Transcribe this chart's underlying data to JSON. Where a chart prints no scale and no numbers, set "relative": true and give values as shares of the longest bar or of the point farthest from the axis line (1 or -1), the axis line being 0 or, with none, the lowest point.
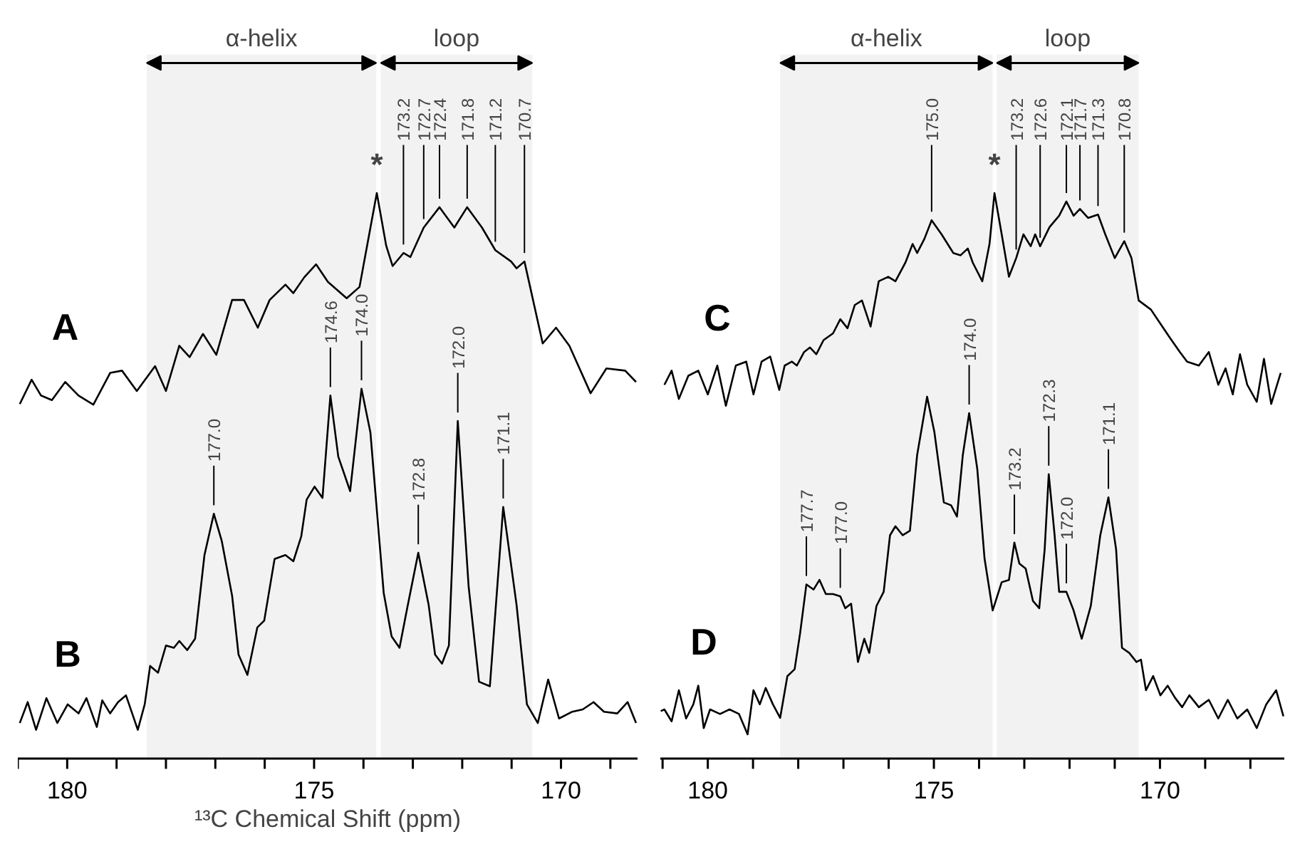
{
  "chart_data": [
    {
      "type": "line",
      "relative": true,
      "xlabel": "¹³C Chemical Shift (ppm)",
      "xlim": [
        181.0,
        168.45
      ],
      "xticks": [
        {
          "value": 181,
          "label": null
        },
        180,
        {
          "value": 179,
          "label": null
        },
        {
          "value": 178,
          "label": null
        },
        {
          "value": 177,
          "label": null
        },
        {
          "value": 176,
          "label": null
        },
        175,
        {
          "value": 174,
          "label": null
        },
        {
          "value": 173,
          "label": null
        },
        {
          "value": 172,
          "label": null
        },
        {
          "value": 171,
          "label": null
        },
        170,
        {
          "value": 169,
          "label": null
        }
      ],
      "line_style": "solid",
      "series": [
        {
          "name": "A",
          "color": "#000000",
          "x": [
            180.96,
            180.72,
            180.53,
            180.31,
            180.04,
            179.77,
            179.47,
            179.13,
            178.89,
            178.59,
            178.22,
            178.0,
            177.73,
            177.52,
            177.25,
            176.98,
            176.66,
            176.42,
            176.14,
            175.9,
            175.58,
            175.42,
            175.2,
            174.96,
            174.72,
            174.34,
            174.08,
            173.73,
            173.54,
            173.41,
            173.19,
            173.05,
            172.78,
            172.46,
            172.16,
            171.9,
            171.6,
            171.33,
            171.01,
            170.9,
            170.74,
            170.37,
            170.1,
            169.83,
            169.4,
            169.08,
            168.7,
            168.48
          ],
          "values": [
            0.627,
            0.67,
            0.642,
            0.634,
            0.666,
            0.642,
            0.626,
            0.682,
            0.686,
            0.65,
            0.694,
            0.65,
            0.73,
            0.71,
            0.751,
            0.714,
            0.811,
            0.811,
            0.762,
            0.811,
            0.838,
            0.823,
            0.851,
            0.874,
            0.843,
            0.814,
            0.834,
            1.0,
            0.907,
            0.871,
            0.894,
            0.887,
            0.939,
            0.975,
            0.939,
            0.975,
            0.939,
            0.899,
            0.879,
            0.867,
            0.879,
            0.734,
            0.762,
            0.73,
            0.646,
            0.69,
            0.686,
            0.666
          ]
        },
        {
          "name": "B",
          "color": "#000000",
          "x": [
            180.96,
            180.8,
            180.63,
            180.42,
            180.2,
            179.99,
            179.77,
            179.61,
            179.4,
            179.29,
            179.13,
            178.97,
            178.81,
            178.57,
            178.43,
            178.32,
            178.16,
            178.0,
            177.84,
            177.73,
            177.57,
            177.41,
            177.22,
            177.03,
            176.87,
            176.66,
            176.53,
            176.35,
            176.15,
            176.01,
            175.8,
            175.58,
            175.42,
            175.26,
            175.15,
            174.99,
            174.83,
            174.67,
            174.51,
            174.27,
            174.04,
            173.86,
            173.59,
            173.43,
            173.27,
            173.11,
            172.89,
            172.68,
            172.55,
            172.41,
            172.27,
            172.09,
            171.87,
            171.66,
            171.44,
            171.17,
            170.9,
            170.69,
            170.47,
            170.26,
            170.04,
            169.77,
            169.56,
            169.34,
            169.13,
            168.86,
            168.65,
            168.48
          ],
          "values": [
            0.063,
            0.1,
            0.051,
            0.107,
            0.063,
            0.096,
            0.08,
            0.107,
            0.056,
            0.103,
            0.08,
            0.1,
            0.112,
            0.051,
            0.096,
            0.164,
            0.152,
            0.2,
            0.196,
            0.208,
            0.192,
            0.212,
            0.36,
            0.433,
            0.385,
            0.288,
            0.184,
            0.148,
            0.232,
            0.244,
            0.353,
            0.36,
            0.349,
            0.393,
            0.458,
            0.481,
            0.461,
            0.642,
            0.534,
            0.473,
            0.654,
            0.577,
            0.293,
            0.216,
            0.196,
            0.268,
            0.364,
            0.272,
            0.184,
            0.168,
            0.2,
            0.597,
            0.304,
            0.136,
            0.128,
            0.445,
            0.272,
            0.096,
            0.063,
            0.14,
            0.071,
            0.083,
            0.087,
            0.1,
            0.083,
            0.08,
            0.1,
            0.063
          ]
        }
      ],
      "bands": [
        {
          "axis": "x",
          "from": 178.39,
          "to": 173.74,
          "label": "α-helix"
        },
        {
          "axis": "x",
          "from": 173.65,
          "to": 170.58,
          "label": "loop"
        }
      ],
      "annotations": [
        {
          "text": "*",
          "x": 173.73,
          "y": 1.0
        },
        {
          "text": "173.2",
          "x": 173.19,
          "y": 0.894
        },
        {
          "text": "172.7",
          "x": 172.78,
          "y": 0.939
        },
        {
          "text": "172.4",
          "x": 172.46,
          "y": 0.975
        },
        {
          "text": "171.8",
          "x": 171.9,
          "y": 0.975
        },
        {
          "text": "171.2",
          "x": 171.33,
          "y": 0.899
        },
        {
          "text": "170.7",
          "x": 170.74,
          "y": 0.879
        },
        {
          "text": "177.0",
          "x": 177.03,
          "y": 0.433
        },
        {
          "text": "174.6",
          "x": 174.67,
          "y": 0.642
        },
        {
          "text": "174.0",
          "x": 174.04,
          "y": 0.654
        },
        {
          "text": "172.8",
          "x": 172.89,
          "y": 0.364
        },
        {
          "text": "172.0",
          "x": 172.09,
          "y": 0.597
        },
        {
          "text": "171.1",
          "x": 171.17,
          "y": 0.445
        }
      ]
    },
    {
      "type": "line",
      "relative": true,
      "xlim": [
        181.05,
        167.25
      ],
      "xticks": [
        {
          "value": 181,
          "label": null
        },
        180,
        {
          "value": 179,
          "label": null
        },
        {
          "value": 178,
          "label": null
        },
        {
          "value": 177,
          "label": null
        },
        {
          "value": 176,
          "label": null
        },
        175,
        {
          "value": 174,
          "label": null
        },
        {
          "value": 173,
          "label": null
        },
        {
          "value": 172,
          "label": null
        },
        {
          "value": 171,
          "label": null
        },
        170,
        {
          "value": 169,
          "label": null
        },
        {
          "value": 168,
          "label": null
        }
      ],
      "line_style": "solid",
      "series": [
        {
          "name": "C",
          "color": "#000000",
          "x": [
            180.96,
            180.8,
            180.64,
            180.43,
            180.21,
            180.0,
            179.79,
            179.6,
            179.38,
            179.15,
            178.99,
            178.81,
            178.62,
            178.42,
            178.3,
            178.14,
            178.03,
            177.87,
            177.74,
            177.6,
            177.44,
            177.23,
            177.07,
            176.91,
            176.75,
            176.59,
            176.4,
            176.22,
            176.01,
            175.85,
            175.63,
            175.47,
            175.37,
            175.21,
            175.05,
            174.83,
            174.57,
            174.41,
            174.25,
            174.14,
            173.93,
            173.77,
            173.66,
            173.5,
            173.34,
            173.18,
            173.02,
            172.86,
            172.76,
            172.65,
            172.44,
            172.23,
            172.07,
            171.91,
            171.77,
            171.59,
            171.37,
            171.21,
            171.0,
            170.79,
            170.63,
            170.47,
            170.2,
            169.99,
            169.78,
            169.56,
            169.4,
            169.14,
            168.92,
            168.71,
            168.55,
            168.39,
            168.23,
            168.07,
            167.86,
            167.7,
            167.54,
            167.33
          ],
          "values": [
            0.661,
            0.686,
            0.636,
            0.677,
            0.686,
            0.644,
            0.695,
            0.624,
            0.695,
            0.702,
            0.644,
            0.702,
            0.711,
            0.652,
            0.695,
            0.702,
            0.695,
            0.719,
            0.727,
            0.715,
            0.74,
            0.752,
            0.777,
            0.761,
            0.802,
            0.81,
            0.764,
            0.844,
            0.852,
            0.844,
            0.877,
            0.91,
            0.894,
            0.919,
            0.952,
            0.927,
            0.894,
            0.89,
            0.902,
            0.877,
            0.844,
            0.91,
            1.0,
            0.927,
            0.852,
            0.885,
            0.927,
            0.906,
            0.927,
            0.906,
            0.94,
            0.96,
            0.985,
            0.96,
            0.972,
            0.956,
            0.962,
            0.927,
            0.885,
            0.915,
            0.885,
            0.81,
            0.794,
            0.769,
            0.744,
            0.719,
            0.702,
            0.695,
            0.719,
            0.661,
            0.69,
            0.644,
            0.715,
            0.661,
            0.631,
            0.707,
            0.627,
            0.682
          ]
        },
        {
          "name": "D",
          "color": "#000000",
          "x": [
            181.04,
            180.96,
            180.8,
            180.64,
            180.48,
            180.32,
            180.21,
            180.09,
            179.95,
            179.73,
            179.52,
            179.31,
            179.12,
            178.99,
            178.85,
            178.72,
            178.56,
            178.4,
            178.24,
            178.08,
            177.96,
            177.82,
            177.66,
            177.53,
            177.39,
            177.23,
            177.07,
            176.96,
            176.83,
            176.68,
            176.54,
            176.43,
            176.27,
            176.11,
            175.97,
            175.85,
            175.69,
            175.53,
            175.37,
            175.15,
            174.99,
            174.78,
            174.62,
            174.49,
            174.36,
            174.22,
            174.04,
            173.88,
            173.7,
            173.5,
            173.34,
            173.22,
            173.11,
            172.97,
            172.81,
            172.67,
            172.55,
            172.46,
            172.33,
            172.23,
            172.07,
            171.91,
            171.73,
            171.53,
            171.32,
            171.14,
            170.97,
            170.84,
            170.68,
            170.52,
            170.42,
            170.31,
            170.15,
            169.99,
            169.83,
            169.67,
            169.51,
            169.35,
            169.14,
            168.92,
            168.71,
            168.5,
            168.29,
            168.07,
            167.86,
            167.65,
            167.43,
            167.27
          ],
          "values": [
            0.084,
            0.087,
            0.066,
            0.121,
            0.071,
            0.096,
            0.129,
            0.054,
            0.087,
            0.079,
            0.087,
            0.079,
            0.043,
            0.121,
            0.096,
            0.125,
            0.096,
            0.072,
            0.146,
            0.158,
            0.221,
            0.308,
            0.299,
            0.316,
            0.291,
            0.291,
            0.287,
            0.266,
            0.274,
            0.171,
            0.212,
            0.187,
            0.27,
            0.295,
            0.395,
            0.411,
            0.395,
            0.403,
            0.537,
            0.64,
            0.578,
            0.453,
            0.448,
            0.428,
            0.537,
            0.611,
            0.512,
            0.354,
            0.262,
            0.312,
            0.316,
            0.382,
            0.345,
            0.336,
            0.279,
            0.266,
            0.37,
            0.503,
            0.395,
            0.295,
            0.295,
            0.262,
            0.212,
            0.27,
            0.395,
            0.462,
            0.37,
            0.196,
            0.187,
            0.171,
            0.175,
            0.121,
            0.146,
            0.112,
            0.129,
            0.108,
            0.091,
            0.112,
            0.091,
            0.104,
            0.071,
            0.104,
            0.071,
            0.087,
            0.054,
            0.096,
            0.121,
            0.075
          ]
        }
      ],
      "bands": [
        {
          "axis": "x",
          "from": 178.4,
          "to": 173.7,
          "label": "α-helix"
        },
        {
          "axis": "x",
          "from": 173.61,
          "to": 170.47,
          "label": "loop"
        }
      ],
      "annotations": [
        {
          "text": "*",
          "x": 173.66,
          "y": 1.0
        },
        {
          "text": "175.0",
          "x": 175.05,
          "y": 0.952
        },
        {
          "text": "173.2",
          "x": 173.18,
          "y": 0.885
        },
        {
          "text": "172.6",
          "x": 172.65,
          "y": 0.906
        },
        {
          "text": "172.1",
          "x": 172.07,
          "y": 0.985
        },
        {
          "text": "171.7",
          "x": 171.77,
          "y": 0.972
        },
        {
          "text": "171.3",
          "x": 171.37,
          "y": 0.962
        },
        {
          "text": "170.8",
          "x": 170.79,
          "y": 0.915
        },
        {
          "text": "177.7",
          "x": 177.82,
          "y": 0.308
        },
        {
          "text": "177.0",
          "x": 177.07,
          "y": 0.287
        },
        {
          "text": "174.0",
          "x": 174.22,
          "y": 0.611
        },
        {
          "text": "173.2",
          "x": 173.22,
          "y": 0.382
        },
        {
          "text": "172.3",
          "x": 172.46,
          "y": 0.503
        },
        {
          "text": "172.0",
          "x": 172.07,
          "y": 0.295
        },
        {
          "text": "171.1",
          "x": 171.14,
          "y": 0.462
        }
      ]
    }
  ]
}
